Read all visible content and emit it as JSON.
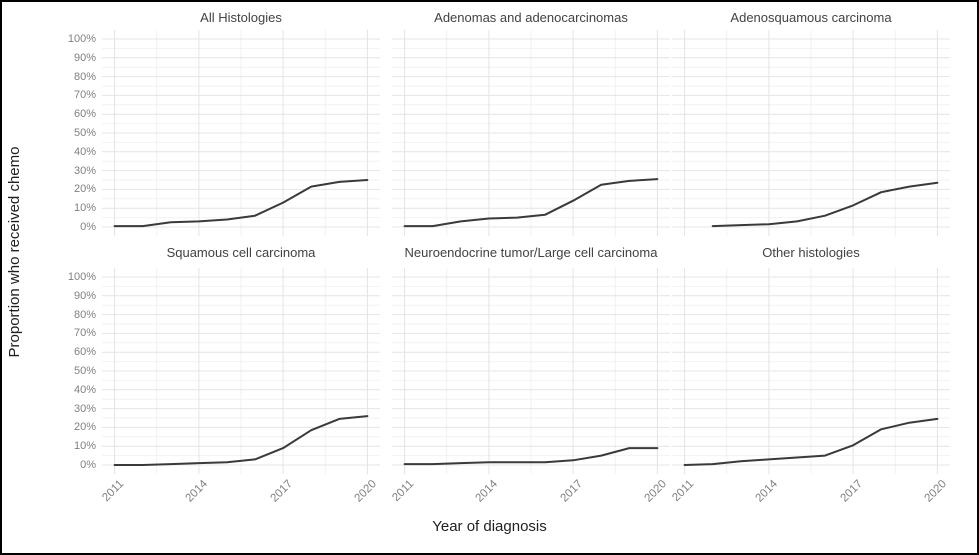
{
  "figure": {
    "y_axis_title": "Proportion who received chemo",
    "x_axis_title": "Year of diagnosis"
  },
  "chart_data": {
    "type": "line",
    "title": "",
    "xlabel": "Year of diagnosis",
    "ylabel": "Proportion who received chemo",
    "x": [
      2011,
      2012,
      2013,
      2014,
      2015,
      2016,
      2017,
      2018,
      2019,
      2020
    ],
    "xlim": [
      2010.55,
      2020.45
    ],
    "ylim": [
      0,
      100
    ],
    "x_ticks": [
      2011,
      2014,
      2017,
      2020
    ],
    "x_tick_labels": [
      "2011",
      "2014",
      "2017",
      "2020"
    ],
    "y_ticks": [
      0,
      10,
      20,
      30,
      40,
      50,
      60,
      70,
      80,
      90,
      100
    ],
    "y_tick_labels": [
      "0%",
      "10%",
      "20%",
      "30%",
      "40%",
      "50%",
      "60%",
      "70%",
      "80%",
      "90%",
      "100%"
    ],
    "x_minor_gridlines": [
      2012.5,
      2015.5,
      2018.5
    ],
    "y_minor_gridlines": [
      5,
      15,
      25,
      35,
      45,
      55,
      65,
      75,
      85,
      95
    ],
    "grid": "on",
    "legend": "none",
    "facets": [
      {
        "title": "All Histologies",
        "values": [
          0.5,
          0.5,
          2.5,
          3,
          4,
          6,
          13,
          21.5,
          24,
          25
        ]
      },
      {
        "title": "Adenomas and adenocarcinomas",
        "values": [
          0.5,
          0.5,
          3,
          4.5,
          5,
          6.5,
          14,
          22.5,
          24.5,
          25.5
        ]
      },
      {
        "title": "Adenosquamous carcinoma",
        "x": [
          2012,
          2013,
          2014,
          2015,
          2016,
          2017,
          2018,
          2019,
          2020
        ],
        "values": [
          0.5,
          1,
          1.5,
          3,
          6,
          11.5,
          18.5,
          21.5,
          23.5
        ]
      },
      {
        "title": "Squamous cell carcinoma",
        "values": [
          0,
          0,
          0.5,
          1,
          1.5,
          3,
          9,
          18.5,
          24.5,
          26
        ]
      },
      {
        "title": "Neuroendocrine tumor/Large cell carcinoma",
        "values": [
          0.5,
          0.5,
          1,
          1.5,
          1.5,
          1.5,
          2.5,
          5,
          9,
          9
        ]
      },
      {
        "title": "Other histologies",
        "values": [
          0,
          0.5,
          2,
          3,
          4,
          5,
          10.5,
          19,
          22.5,
          24.5
        ]
      }
    ],
    "colors": {
      "line": "#3a3a3a",
      "grid_major": "#e4e4e4",
      "grid_minor": "#f2f2f2",
      "axis_text": "#808080",
      "strip_text": "#424242",
      "axis_title": "#1f1f1f",
      "background": "#ffffff",
      "border": "#000000"
    }
  }
}
